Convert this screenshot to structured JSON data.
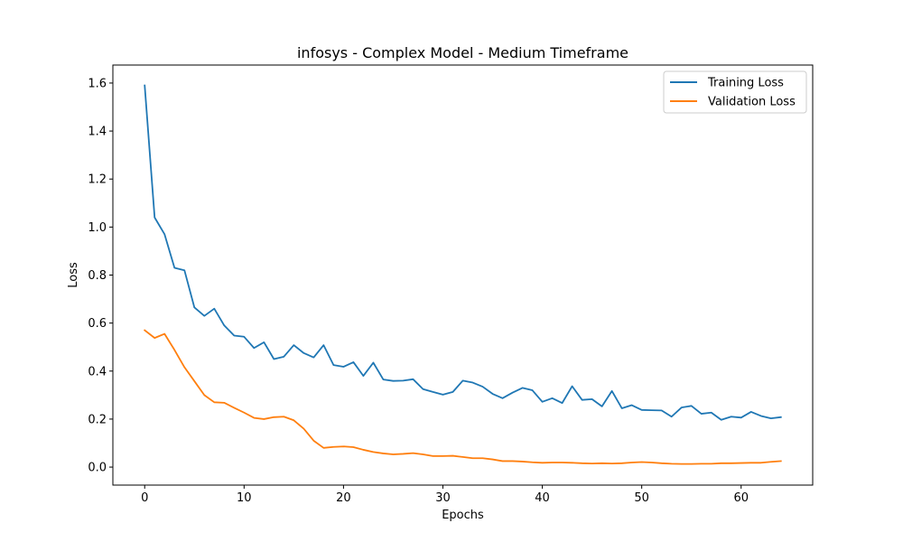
{
  "chart_data": {
    "type": "line",
    "title": "infosys - Complex Model - Medium Timeframe",
    "xlabel": "Epochs",
    "ylabel": "Loss",
    "xlim": [
      -3.2,
      67.2
    ],
    "ylim": [
      -0.075,
      1.675
    ],
    "xticks": [
      0,
      10,
      20,
      30,
      40,
      50,
      60
    ],
    "xtick_labels": [
      "0",
      "10",
      "20",
      "30",
      "40",
      "50",
      "60"
    ],
    "yticks": [
      0.0,
      0.2,
      0.4,
      0.6,
      0.8,
      1.0,
      1.2,
      1.4,
      1.6
    ],
    "ytick_labels": [
      "0.0",
      "0.2",
      "0.4",
      "0.6",
      "0.8",
      "1.0",
      "1.2",
      "1.4",
      "1.6"
    ],
    "legend_position": "top-right",
    "grid": false,
    "series": [
      {
        "name": "Training Loss",
        "color": "#1f77b4",
        "values": [
          1.59,
          1.04,
          0.97,
          0.83,
          0.82,
          0.665,
          0.63,
          0.66,
          0.59,
          0.548,
          0.543,
          0.496,
          0.52,
          0.45,
          0.46,
          0.508,
          0.475,
          0.457,
          0.508,
          0.425,
          0.418,
          0.437,
          0.38,
          0.435,
          0.365,
          0.359,
          0.36,
          0.366,
          0.325,
          0.313,
          0.302,
          0.313,
          0.36,
          0.352,
          0.335,
          0.305,
          0.287,
          0.31,
          0.33,
          0.32,
          0.272,
          0.287,
          0.267,
          0.337,
          0.28,
          0.283,
          0.253,
          0.317,
          0.245,
          0.258,
          0.238,
          0.237,
          0.236,
          0.21,
          0.248,
          0.255,
          0.222,
          0.227,
          0.197,
          0.21,
          0.206,
          0.23,
          0.213,
          0.203,
          0.208
        ]
      },
      {
        "name": "Validation Loss",
        "color": "#ff7f0e",
        "values": [
          0.57,
          0.538,
          0.555,
          0.488,
          0.416,
          0.358,
          0.3,
          0.27,
          0.268,
          0.247,
          0.227,
          0.205,
          0.2,
          0.208,
          0.21,
          0.195,
          0.16,
          0.11,
          0.08,
          0.084,
          0.086,
          0.083,
          0.072,
          0.063,
          0.057,
          0.053,
          0.055,
          0.058,
          0.053,
          0.046,
          0.046,
          0.047,
          0.042,
          0.037,
          0.037,
          0.032,
          0.025,
          0.025,
          0.023,
          0.02,
          0.018,
          0.019,
          0.019,
          0.018,
          0.016,
          0.015,
          0.016,
          0.015,
          0.016,
          0.019,
          0.021,
          0.019,
          0.016,
          0.014,
          0.013,
          0.013,
          0.014,
          0.014,
          0.016,
          0.016,
          0.017,
          0.018,
          0.018,
          0.022,
          0.025
        ]
      }
    ]
  }
}
